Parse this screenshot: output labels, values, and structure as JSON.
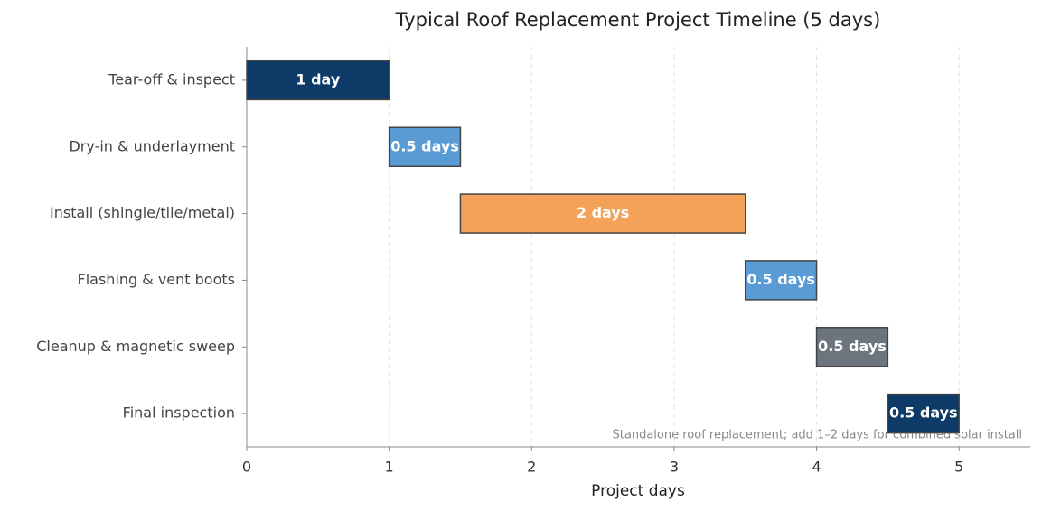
{
  "chart_data": {
    "type": "gantt",
    "title": "Typical Roof Replacement Project Timeline (5 days)",
    "x_label": "Project days",
    "annotation": "Standalone roof replacement; add 1–2 days for combined solar install",
    "categories": [
      "Tear-off & inspect",
      "Dry-in & underlayment",
      "Install (shingle/tile/metal)",
      "Flashing & vent boots",
      "Cleanup & magnetic sweep",
      "Final inspection"
    ],
    "starts": [
      0,
      1,
      1.5,
      3.5,
      4,
      4.5
    ],
    "values": [
      1,
      0.5,
      2,
      0.5,
      0.5,
      0.5
    ],
    "value_labels": [
      "1 day",
      "0.5 days",
      "2 days",
      "0.5 days",
      "0.5 days",
      "0.5 days"
    ],
    "colors": [
      "#0d3a66",
      "#5b9bd5",
      "#f4a259",
      "#5b9bd5",
      "#6c757d",
      "#0d3a66"
    ],
    "xlim": [
      0,
      5.5
    ],
    "xticks": [
      0,
      1,
      2,
      3,
      4,
      5
    ],
    "grid": true
  }
}
